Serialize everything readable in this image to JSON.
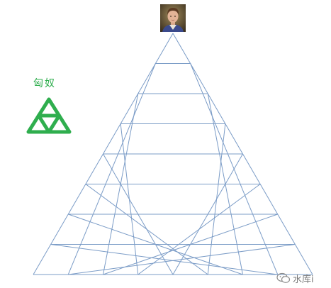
{
  "player": {
    "avatar_icon": "male-portrait-icon"
  },
  "legend": {
    "label": "匈奴",
    "icon": "triforce-triangle-icon",
    "color": "#2fae4e"
  },
  "grid": {
    "shape": "equilateral-triangle",
    "rows": 8,
    "line_color": "#7b9cc7"
  },
  "watermark": {
    "icon": "wechat-icon",
    "text": "水库i"
  }
}
